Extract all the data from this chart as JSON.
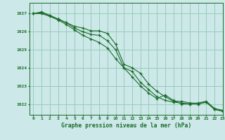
{
  "background_color": "#cce8e8",
  "grid_color": "#99ccbb",
  "line_color": "#1a6b2a",
  "marker_color": "#1a6b2a",
  "xlabel": "Graphe pression niveau de la mer (hPa)",
  "xlim": [
    -0.5,
    23
  ],
  "ylim": [
    1021.4,
    1027.6
  ],
  "yticks": [
    1022,
    1023,
    1024,
    1025,
    1026,
    1027
  ],
  "xticks": [
    0,
    1,
    2,
    3,
    4,
    5,
    6,
    7,
    8,
    9,
    10,
    11,
    12,
    13,
    14,
    15,
    16,
    17,
    18,
    19,
    20,
    21,
    22,
    23
  ],
  "hours": [
    0,
    1,
    2,
    3,
    4,
    5,
    6,
    7,
    8,
    9,
    10,
    11,
    12,
    13,
    14,
    15,
    16,
    17,
    18,
    19,
    20,
    21,
    22,
    23
  ],
  "line1": [
    1027.0,
    1027.1,
    1026.9,
    1026.7,
    1026.5,
    1026.3,
    1026.2,
    1026.05,
    1026.05,
    1025.9,
    1025.3,
    1024.2,
    1024.0,
    1023.7,
    1023.1,
    1022.7,
    1022.4,
    1022.15,
    1022.15,
    1022.05,
    1022.05,
    1022.15,
    1021.75,
    1021.65
  ],
  "line2": [
    1027.0,
    1027.05,
    1026.9,
    1026.7,
    1026.5,
    1026.2,
    1026.0,
    1025.85,
    1025.8,
    1025.5,
    1025.0,
    1024.0,
    1023.8,
    1023.2,
    1022.8,
    1022.4,
    1022.2,
    1022.1,
    1022.05,
    1022.0,
    1022.0,
    1022.1,
    1021.7,
    1021.6
  ],
  "line3": [
    1027.0,
    1027.0,
    1026.85,
    1026.65,
    1026.4,
    1026.1,
    1025.8,
    1025.6,
    1025.4,
    1025.1,
    1024.5,
    1024.0,
    1023.5,
    1023.0,
    1022.6,
    1022.3,
    1022.5,
    1022.2,
    1022.0,
    1022.0,
    1022.0,
    1022.1,
    1021.7,
    1021.6
  ]
}
